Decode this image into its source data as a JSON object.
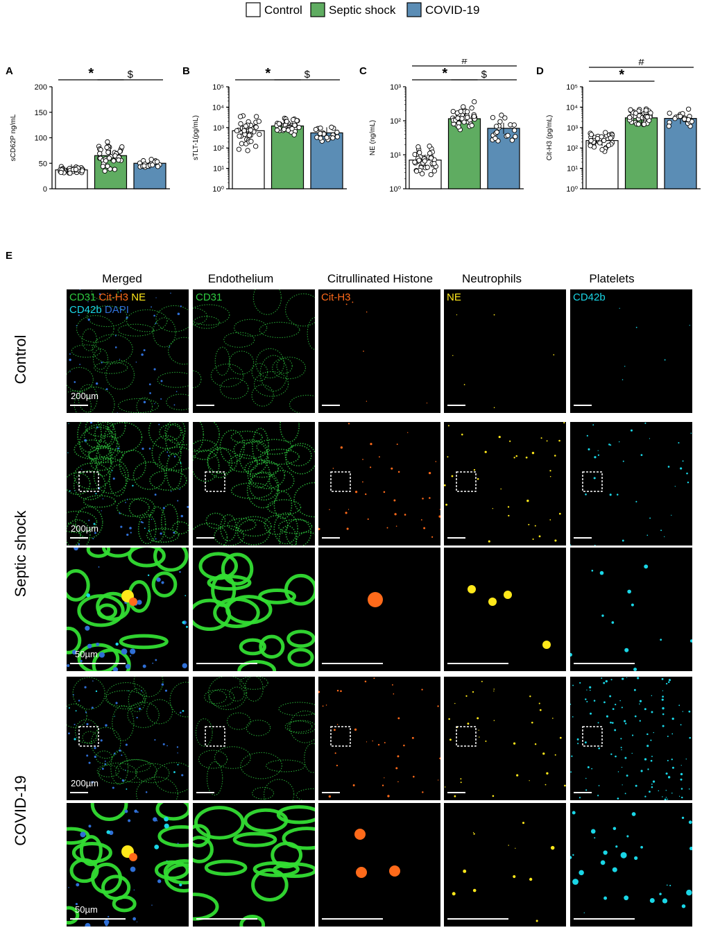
{
  "legend": {
    "items": [
      {
        "label": "Control",
        "color": "#ffffff"
      },
      {
        "label": "Septic shock",
        "color": "#5fac61"
      },
      {
        "label": "COVID-19",
        "color": "#5b8db5"
      }
    ]
  },
  "chart_data": [
    {
      "panel": "A",
      "type": "bar",
      "ylabel": "sCD62P ng/mL",
      "yscale": "linear",
      "ylim": [
        0,
        200
      ],
      "yticks": [
        "0",
        "50",
        "100",
        "150",
        "200"
      ],
      "categories": [
        "Control",
        "Septic shock",
        "COVID-19"
      ],
      "values": [
        37,
        65,
        50
      ],
      "significance": [
        {
          "from": 0,
          "to": 1,
          "symbol": "*"
        },
        {
          "from": 1,
          "to": 2,
          "symbol": "$"
        }
      ]
    },
    {
      "panel": "B",
      "type": "bar",
      "ylabel": "sTLT-1(pg/mL)",
      "yscale": "log",
      "ylim": [
        1,
        100000
      ],
      "yticks": [
        "10⁰",
        "10¹",
        "10²",
        "10³",
        "10⁴",
        "10⁵"
      ],
      "categories": [
        "Control",
        "Septic shock",
        "COVID-19"
      ],
      "values": [
        700,
        1200,
        550
      ],
      "significance": [
        {
          "from": 0,
          "to": 1,
          "symbol": "*"
        },
        {
          "from": 1,
          "to": 2,
          "symbol": "$"
        }
      ]
    },
    {
      "panel": "C",
      "type": "bar",
      "ylabel": "NE (ng/mL)",
      "yscale": "log",
      "ylim": [
        1,
        1000
      ],
      "yticks": [
        "10⁰",
        "10¹",
        "10²",
        "10³"
      ],
      "categories": [
        "Control",
        "Septic shock",
        "COVID-19"
      ],
      "values": [
        7,
        115,
        60
      ],
      "significance": [
        {
          "from": 0,
          "to": 2,
          "symbol": "#"
        },
        {
          "from": 0,
          "to": 1,
          "symbol": "*"
        },
        {
          "from": 1,
          "to": 2,
          "symbol": "$"
        }
      ]
    },
    {
      "panel": "D",
      "type": "bar",
      "ylabel": "Cit-H3 (pg/mL)",
      "yscale": "log",
      "ylim": [
        1,
        100000
      ],
      "yticks": [
        "10⁰",
        "10¹",
        "10²",
        "10³",
        "10⁴",
        "10⁵"
      ],
      "categories": [
        "Control",
        "Septic shock",
        "COVID-19"
      ],
      "values": [
        230,
        3000,
        2800
      ],
      "significance": [
        {
          "from": 0,
          "to": 2,
          "symbol": "#"
        },
        {
          "from": 0,
          "to": 1,
          "symbol": "*"
        }
      ]
    }
  ],
  "panelE": {
    "letter": "E",
    "columns": [
      "Merged",
      "Endothelium",
      "Citrullinated Histone",
      "Neutrophils",
      "Platelets"
    ],
    "rows": [
      "Control",
      "Septic shock",
      "COVID-19"
    ],
    "stains": {
      "merged_line1": [
        {
          "text": "CD31",
          "color": "#2ecc40"
        },
        {
          "text": "Cit-H3",
          "color": "#ff6a1a"
        },
        {
          "text": "NE",
          "color": "#ffe81a"
        }
      ],
      "merged_line2": [
        {
          "text": "CD42b",
          "color": "#1ad6e6"
        },
        {
          "text": "DAPI",
          "color": "#2f6fd6"
        }
      ],
      "endothelium": {
        "text": "CD31",
        "color": "#2ecc40"
      },
      "citrullinated": {
        "text": "Cit-H3",
        "color": "#ff6a1a"
      },
      "neutrophils": {
        "text": "NE",
        "color": "#ffe81a"
      },
      "platelets": {
        "text": "CD42b",
        "color": "#1ad6e6"
      }
    },
    "scale_labels": {
      "low_mag": "200µm",
      "high_mag": "50µm"
    }
  }
}
